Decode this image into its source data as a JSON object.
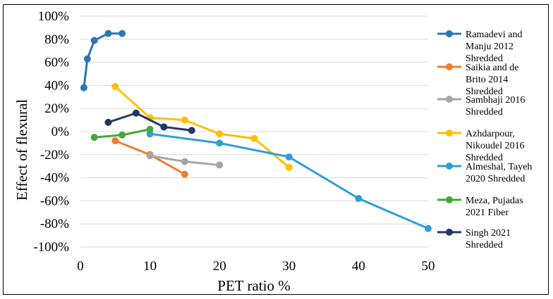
{
  "chart_data": {
    "type": "line",
    "title": "",
    "xlabel": "PET ratio %",
    "ylabel": "Effect of flexural",
    "xlim": [
      0,
      50
    ],
    "ylim": [
      -100,
      100
    ],
    "x_ticks": [
      0,
      10,
      20,
      30,
      40,
      50
    ],
    "y_ticks": [
      100,
      80,
      60,
      40,
      20,
      0,
      -20,
      -40,
      -60,
      -80,
      -100
    ],
    "y_tick_labels": [
      "100%",
      "80%",
      "60%",
      "40%",
      "20%",
      "0%",
      "-20%",
      "-40%",
      "-60%",
      "-80%",
      "-100%"
    ],
    "grid": "horizontal",
    "legend_position": "right",
    "series": [
      {
        "name": "Ramadevi and Manju 2012 Shredded",
        "name_lines": [
          "Ramadevi and",
          "Manju 2012",
          "Shredded"
        ],
        "color": "#2E75B6",
        "x": [
          0.5,
          1,
          2,
          4,
          6
        ],
        "y": [
          38,
          63,
          79,
          85,
          85
        ]
      },
      {
        "name": "Saikia and de Brito 2014 Shredded",
        "name_lines": [
          "Saikia and de",
          "Brito 2014",
          "Shredded"
        ],
        "color": "#ED7D31",
        "x": [
          5,
          10,
          15
        ],
        "y": [
          -8,
          -20,
          -37
        ]
      },
      {
        "name": "Sambhaji 2016 Shredded",
        "name_lines": [
          "Sambhaji 2016",
          "Shredded"
        ],
        "color": "#A5A5A5",
        "x": [
          10,
          15,
          20
        ],
        "y": [
          -21,
          -26,
          -29
        ]
      },
      {
        "name": "Azhdarpour, Nikoudel 2016 Shredded",
        "name_lines": [
          "Azhdarpour,",
          "Nikoudel 2016",
          "Shredded"
        ],
        "color": "#FFC000",
        "x": [
          5,
          10,
          15,
          20,
          25,
          30
        ],
        "y": [
          39,
          12,
          10,
          -2,
          -6,
          -31
        ]
      },
      {
        "name": "Almeshal, Tayeh 2020 Shredded",
        "name_lines": [
          "Almeshal, Tayeh",
          "2020 Shredded"
        ],
        "color": "#2E9FD8",
        "x": [
          10,
          20,
          30,
          40,
          50
        ],
        "y": [
          -2,
          -10,
          -22,
          -58,
          -84
        ]
      },
      {
        "name": "Meza, Pujadas 2021 Fiber",
        "name_lines": [
          "Meza, Pujadas",
          "2021 Fiber"
        ],
        "color": "#44A835",
        "x": [
          2,
          6,
          10
        ],
        "y": [
          -5,
          -3,
          2
        ]
      },
      {
        "name": "Singh 2021 Shredded",
        "name_lines": [
          "Singh 2021",
          "Shredded"
        ],
        "color": "#1F3864",
        "x": [
          4,
          8,
          12,
          16
        ],
        "y": [
          8,
          16,
          4,
          1
        ]
      }
    ]
  }
}
